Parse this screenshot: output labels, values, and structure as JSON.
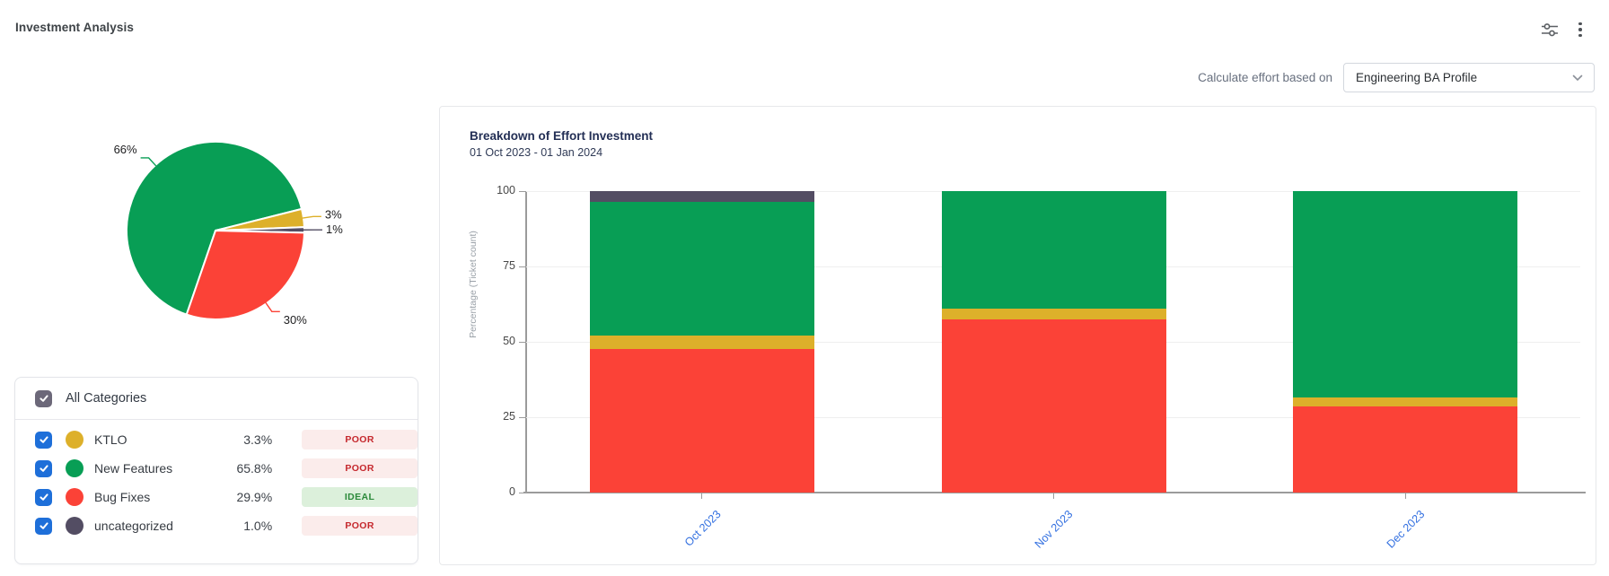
{
  "header": {
    "title": "Investment Analysis",
    "icons": [
      "filter-sliders-icon",
      "kebab-menu-icon"
    ]
  },
  "controls": {
    "label": "Calculate effort based on",
    "dropdown_value": "Engineering BA Profile",
    "dropdown_icon": "chevron-down-icon"
  },
  "legend": {
    "all_label": "All Categories",
    "all_checked": true,
    "rows": [
      {
        "label": "KTLO",
        "percent": "3.3%",
        "status": "POOR",
        "status_type": "poor",
        "color": "#ddb02a",
        "checked": true
      },
      {
        "label": "New Features",
        "percent": "65.8%",
        "status": "POOR",
        "status_type": "poor",
        "color": "#089e55",
        "checked": true
      },
      {
        "label": "Bug Fixes",
        "percent": "29.9%",
        "status": "IDEAL",
        "status_type": "ideal",
        "color": "#fb4237",
        "checked": true
      },
      {
        "label": "uncategorized",
        "percent": "1.0%",
        "status": "POOR",
        "status_type": "poor",
        "color": "#534d63",
        "checked": true
      }
    ]
  },
  "colors": {
    "accent_blue": "#1e6fd9",
    "axis_gray": "#9b9b9b",
    "xtick_blue": "#3370e0",
    "poor_bg": "#fbeceb",
    "poor_text": "#c5282d",
    "ideal_bg": "#dcf0db",
    "ideal_text": "#2b8a3a"
  },
  "chart_data": [
    {
      "type": "pie",
      "slices": [
        {
          "label": "New Features",
          "value": 65.8,
          "display": "66%",
          "color": "#089e55"
        },
        {
          "label": "KTLO",
          "value": 3.3,
          "display": "3%",
          "color": "#ddb02a"
        },
        {
          "label": "uncategorized",
          "value": 1.0,
          "display": "1%",
          "color": "#534d63"
        },
        {
          "label": "Bug Fixes",
          "value": 29.9,
          "display": "30%",
          "color": "#fb4237"
        }
      ],
      "start_angle_deg": 199,
      "clockwise": true,
      "legend_position": "bottom-left-panel"
    },
    {
      "type": "bar",
      "stacked": true,
      "title": "Breakdown of Effort Investment",
      "subtitle": "01 Oct 2023 - 01 Jan 2024",
      "categories": [
        "Oct 2023",
        "Nov 2023",
        "Dec 2023"
      ],
      "series": [
        {
          "name": "Bug Fixes",
          "color": "#fb4237",
          "values": [
            47.5,
            57.5,
            28.5
          ]
        },
        {
          "name": "KTLO",
          "color": "#ddb02a",
          "values": [
            4.5,
            3.5,
            3.0
          ]
        },
        {
          "name": "New Features",
          "color": "#089e55",
          "values": [
            44.5,
            39.0,
            68.5
          ]
        },
        {
          "name": "uncategorized",
          "color": "#534d63",
          "values": [
            3.5,
            0,
            0
          ]
        }
      ],
      "ylabel": "Percentage (Ticket count)",
      "xlabel": "",
      "yticks": [
        0,
        25,
        50,
        75,
        100
      ],
      "ylim": [
        0,
        100
      ],
      "grid": true
    }
  ]
}
